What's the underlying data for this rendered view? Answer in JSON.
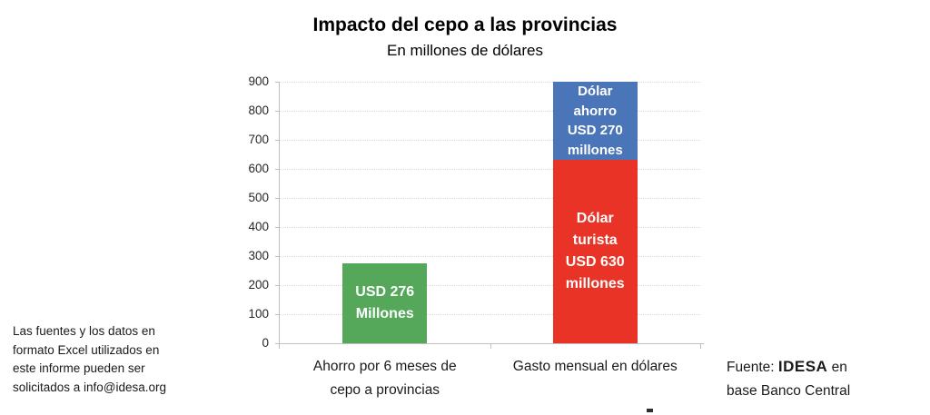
{
  "title": "Impacto del cepo a las provincias",
  "subtitle": "En millones de dólares",
  "chart_data": {
    "type": "bar",
    "stacked": true,
    "title": "Impacto del cepo a las provincias",
    "subtitle": "En millones de dólares",
    "unit": "USD millones",
    "xlabel": "",
    "ylabel": "",
    "ylim": [
      0,
      900
    ],
    "yticks": [
      0,
      100,
      200,
      300,
      400,
      500,
      600,
      700,
      800,
      900
    ],
    "grid": "horizontal-dotted",
    "legend": "none",
    "categories": [
      "Ahorro por 6 meses de cepo a provincias",
      "Gasto mensual en dólares"
    ],
    "bars": [
      {
        "category_lines": [
          "Ahorro por 6 meses de",
          "cepo a provincias"
        ],
        "total": 276,
        "segments": [
          {
            "value": 276,
            "color": "#55A85A",
            "label_lines": [
              "USD 276",
              "Millones"
            ]
          }
        ]
      },
      {
        "category_lines": [
          "Gasto mensual en dólares"
        ],
        "total": 900,
        "segments": [
          {
            "value": 630,
            "color": "#EA3327",
            "label_lines": [
              "Dólar",
              "turista",
              "USD 630",
              "millones"
            ]
          },
          {
            "value": 270,
            "color": "#4A75B8",
            "label_lines": [
              "Dólar",
              "ahorro",
              "USD 270",
              "millones"
            ]
          }
        ]
      }
    ]
  },
  "note": {
    "lines": [
      "Las fuentes y los datos en",
      "formato Excel utilizados en",
      "este informe pueden ser",
      "solicitados a info@idesa.org"
    ]
  },
  "source": {
    "prefix": "Fuente: ",
    "brand": "IDESA",
    "middle": " en",
    "line2": "base Banco Central"
  },
  "colors": {
    "green": "#55A85A",
    "red": "#EA3327",
    "blue": "#4A75B8",
    "axis": "#BFBFBF",
    "gridline": "#D9D9D9",
    "bar_label_text": "#FFFFFF",
    "text": "#1A1A1A"
  }
}
